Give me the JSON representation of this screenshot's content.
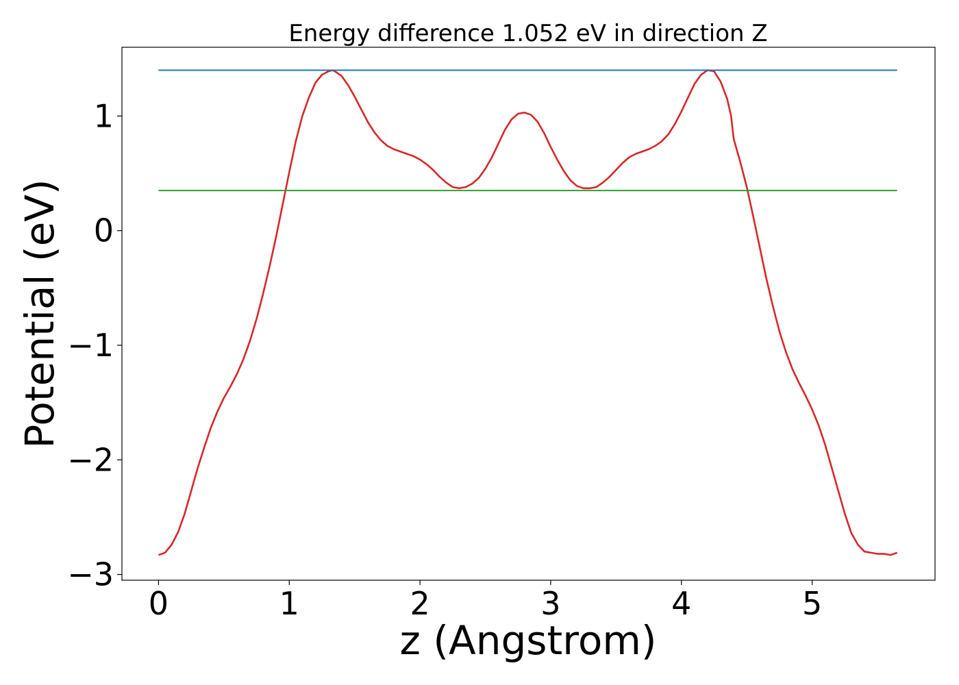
{
  "chart_data": {
    "type": "line",
    "title": "Energy difference 1.052 eV in direction Z",
    "xlabel": "z (Angstrom)",
    "ylabel": "Potential (eV)",
    "xlim": [
      -0.28,
      5.94
    ],
    "ylim": [
      -3.05,
      1.6
    ],
    "x_ticks": [
      0,
      1,
      2,
      3,
      4,
      5
    ],
    "y_ticks": [
      -3,
      -2,
      -1,
      0,
      1
    ],
    "x_tick_labels": [
      "0",
      "1",
      "2",
      "3",
      "4",
      "5"
    ],
    "y_tick_labels": [
      "−3",
      "−2",
      "−1",
      "0",
      "1"
    ],
    "grid": false,
    "legend": "none",
    "series": [
      {
        "color": "#d62728",
        "x": [
          0,
          0.05,
          0.1,
          0.15,
          0.2,
          0.25,
          0.3,
          0.35,
          0.4,
          0.45,
          0.5,
          0.55,
          0.6,
          0.65,
          0.7,
          0.75,
          0.8,
          0.85,
          0.9,
          0.95,
          1.0,
          1.05,
          1.1,
          1.15,
          1.2,
          1.25,
          1.3,
          1.33,
          1.35,
          1.4,
          1.45,
          1.5,
          1.55,
          1.6,
          1.65,
          1.7,
          1.75,
          1.8,
          1.85,
          1.9,
          1.95,
          2.0,
          2.05,
          2.1,
          2.15,
          2.2,
          2.25,
          2.3,
          2.35,
          2.4,
          2.45,
          2.5,
          2.55,
          2.6,
          2.65,
          2.7,
          2.75,
          2.8,
          2.85,
          2.9,
          2.95,
          3.0,
          3.05,
          3.1,
          3.15,
          3.2,
          3.25,
          3.3,
          3.35,
          3.4,
          3.45,
          3.5,
          3.55,
          3.6,
          3.65,
          3.7,
          3.75,
          3.8,
          3.85,
          3.9,
          3.95,
          4.0,
          4.05,
          4.1,
          4.15,
          4.2,
          4.25,
          4.3,
          4.35,
          4.38,
          4.4,
          4.45,
          4.5,
          4.55,
          4.6,
          4.65,
          4.7,
          4.75,
          4.8,
          4.85,
          4.9,
          4.95,
          5.0,
          5.05,
          5.1,
          5.15,
          5.2,
          5.25,
          5.3,
          5.35,
          5.4,
          5.45,
          5.5,
          5.55,
          5.6,
          5.65
        ],
        "y": [
          -2.83,
          -2.81,
          -2.74,
          -2.63,
          -2.47,
          -2.27,
          -2.07,
          -1.89,
          -1.72,
          -1.58,
          -1.46,
          -1.36,
          -1.25,
          -1.12,
          -0.96,
          -0.77,
          -0.55,
          -0.31,
          -0.05,
          0.23,
          0.51,
          0.78,
          1.0,
          1.16,
          1.29,
          1.36,
          1.39,
          1.4,
          1.39,
          1.35,
          1.27,
          1.17,
          1.06,
          0.95,
          0.86,
          0.79,
          0.74,
          0.71,
          0.69,
          0.67,
          0.65,
          0.62,
          0.58,
          0.53,
          0.47,
          0.42,
          0.38,
          0.37,
          0.38,
          0.41,
          0.46,
          0.54,
          0.64,
          0.76,
          0.88,
          0.97,
          1.02,
          1.03,
          1.01,
          0.95,
          0.85,
          0.73,
          0.62,
          0.52,
          0.44,
          0.39,
          0.37,
          0.37,
          0.38,
          0.42,
          0.47,
          0.53,
          0.59,
          0.64,
          0.67,
          0.69,
          0.71,
          0.74,
          0.78,
          0.84,
          0.93,
          1.04,
          1.16,
          1.28,
          1.36,
          1.4,
          1.39,
          1.3,
          1.15,
          1.0,
          0.8,
          0.6,
          0.38,
          0.12,
          -0.15,
          -0.42,
          -0.66,
          -0.88,
          -1.06,
          -1.21,
          -1.33,
          -1.44,
          -1.56,
          -1.7,
          -1.87,
          -2.07,
          -2.27,
          -2.47,
          -2.64,
          -2.74,
          -2.8,
          -2.81,
          -2.82,
          -2.82,
          -2.83,
          -2.81
        ]
      },
      {
        "color": "#1f77b4",
        "x": [
          0,
          5.65
        ],
        "y": [
          1.4,
          1.4
        ]
      },
      {
        "color": "#2ca02c",
        "x": [
          0,
          5.65
        ],
        "y": [
          0.35,
          0.35
        ]
      }
    ]
  }
}
